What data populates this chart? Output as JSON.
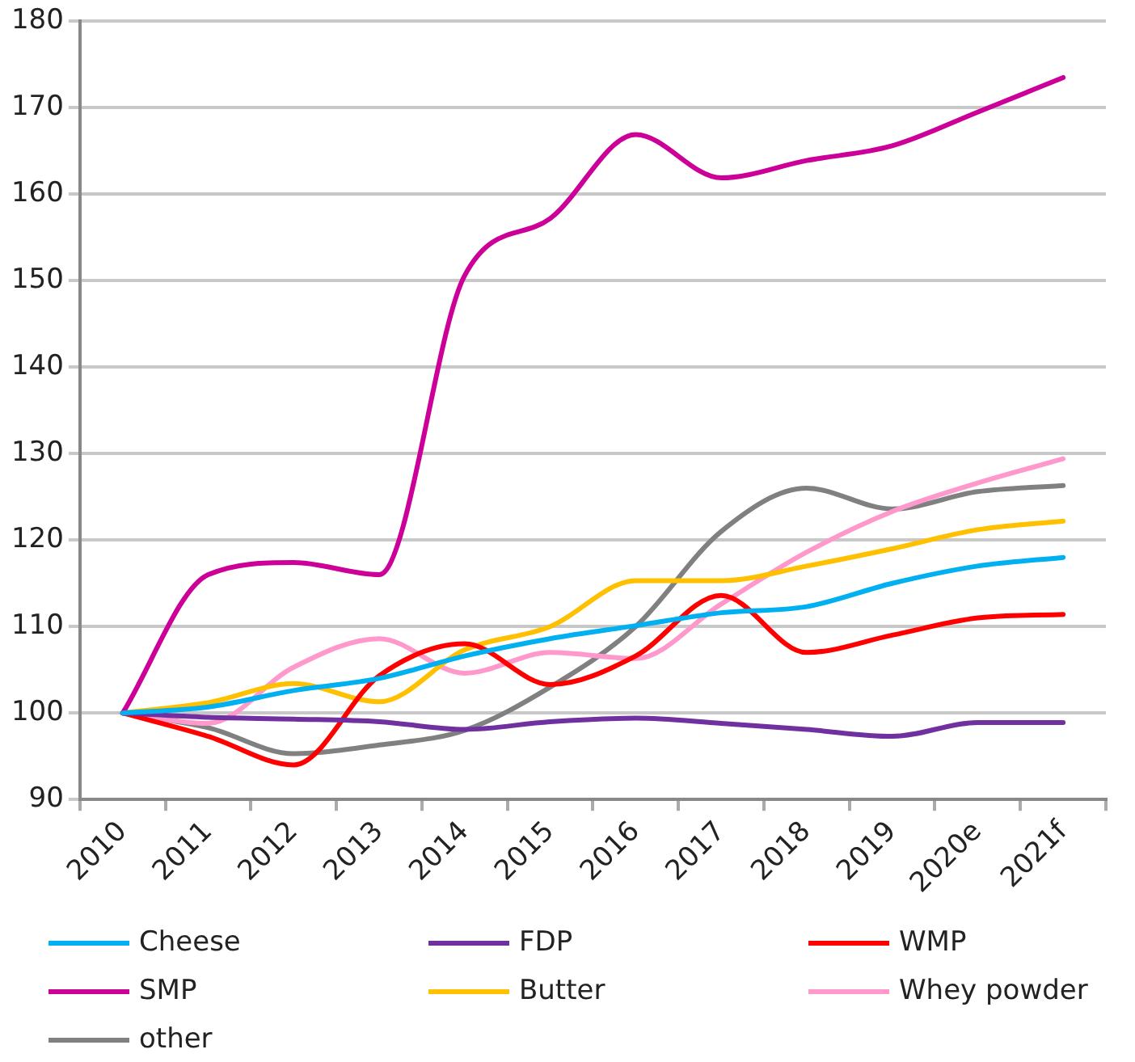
{
  "chart_data": {
    "type": "line",
    "categories": [
      "2010",
      "2011",
      "2012",
      "2013",
      "2014",
      "2015",
      "2016",
      "2017",
      "2018",
      "2019",
      "2020e",
      "2021f"
    ],
    "series": [
      {
        "name": "Cheese",
        "color": "#00b0f0",
        "values": [
          100,
          100.7,
          102.6,
          104,
          106.6,
          108.6,
          110.1,
          111.6,
          112.3,
          115,
          117,
          118
        ]
      },
      {
        "name": "FDP",
        "color": "#7030a0",
        "values": [
          100,
          99.5,
          99.3,
          99,
          98.1,
          99,
          99.4,
          98.8,
          98.1,
          97.3,
          98.9,
          98.9
        ]
      },
      {
        "name": "WMP",
        "color": "#ff0000",
        "values": [
          100,
          97.3,
          94,
          104.3,
          108,
          103.3,
          106.6,
          113.6,
          107,
          109,
          111,
          111.4
        ]
      },
      {
        "name": "SMP",
        "color": "#cc0099",
        "values": [
          100,
          116,
          117.4,
          116,
          150.6,
          157.2,
          166.9,
          161.9,
          163.9,
          165.6,
          169.5,
          173.5
        ]
      },
      {
        "name": "Butter",
        "color": "#ffc000",
        "values": [
          100,
          101.2,
          103.4,
          101.3,
          107.3,
          110,
          115.3,
          115.3,
          117,
          119,
          121.2,
          122.2
        ]
      },
      {
        "name": "Whey powder",
        "color": "#ff99cc",
        "values": [
          100,
          98.8,
          105.3,
          108.6,
          104.6,
          107,
          106.3,
          112.6,
          118.6,
          123.3,
          126.6,
          129.4
        ]
      },
      {
        "name": "other",
        "color": "#808080",
        "values": [
          100,
          98.3,
          95.3,
          96.3,
          98,
          103,
          110,
          121,
          126,
          123.6,
          125.6,
          126.3
        ]
      }
    ],
    "ylim": [
      90,
      180
    ],
    "yticks": [
      90,
      100,
      110,
      120,
      130,
      140,
      150,
      160,
      170,
      180
    ],
    "grid": "y",
    "legend": "bottom",
    "marker": "none",
    "line_style": "solid"
  }
}
